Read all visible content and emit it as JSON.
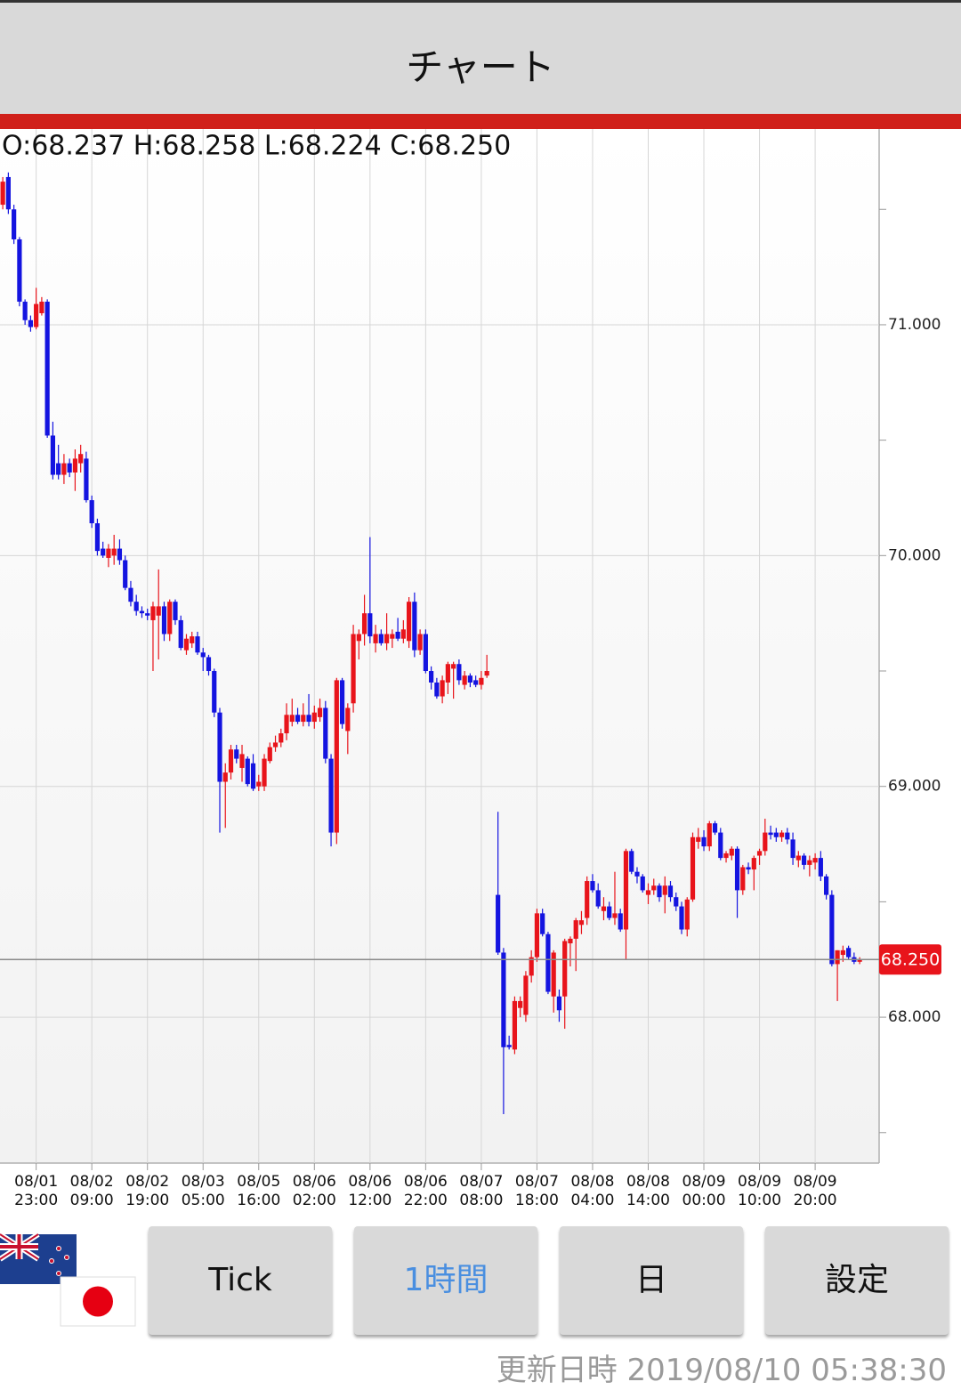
{
  "app": {
    "title": "チャート",
    "buttons": [
      "Tick",
      "1時間",
      "日",
      "設定"
    ],
    "selected_button": 1,
    "updated_label": "更新日時",
    "updated_at": "2019/08/10 05:38:30"
  },
  "chart_data": {
    "type": "candlestick",
    "info": "O:68.237 H:68.258 L:68.224 C:68.250",
    "up_color": "#e8141b",
    "down_color": "#1414e0",
    "grid": true,
    "xlim": [
      -0.5,
      157.5
    ],
    "xticks": [
      {
        "value": 6,
        "label": "08/01\n23:00"
      },
      {
        "value": 16,
        "label": "08/02\n09:00"
      },
      {
        "value": 26,
        "label": "08/02\n19:00"
      },
      {
        "value": 36,
        "label": "08/03\n05:00"
      },
      {
        "value": 46,
        "label": "08/05\n16:00"
      },
      {
        "value": 56,
        "label": "08/06\n02:00"
      },
      {
        "value": 66,
        "label": "08/06\n12:00"
      },
      {
        "value": 76,
        "label": "08/06\n22:00"
      },
      {
        "value": 86,
        "label": "08/07\n08:00"
      },
      {
        "value": 96,
        "label": "08/07\n18:00"
      },
      {
        "value": 106,
        "label": "08/08\n04:00"
      },
      {
        "value": 116,
        "label": "08/08\n14:00"
      },
      {
        "value": 126,
        "label": "08/09\n00:00"
      },
      {
        "value": 136,
        "label": "08/09\n10:00"
      },
      {
        "value": 146,
        "label": "08/09\n20:00"
      }
    ],
    "ylim": [
      67.368,
      71.848
    ],
    "yticks": [
      {
        "value": 68,
        "label": "68.000"
      },
      {
        "value": 69,
        "label": "69.000"
      },
      {
        "value": 70,
        "label": "70.000"
      },
      {
        "value": 71,
        "label": "71.000"
      }
    ],
    "minor_yticks": [
      67.5,
      68.5,
      69.5,
      70.5,
      71.5
    ],
    "last_price": {
      "value": 68.25,
      "label": "68.250"
    },
    "candles": [
      [
        71.52,
        71.64,
        71.5,
        71.62
      ],
      [
        71.64,
        71.66,
        71.48,
        71.5
      ],
      [
        71.5,
        71.52,
        71.35,
        71.37
      ],
      [
        71.37,
        71.38,
        71.08,
        71.1
      ],
      [
        71.1,
        71.11,
        71.0,
        71.02
      ],
      [
        71.02,
        71.04,
        70.97,
        70.99
      ],
      [
        70.99,
        71.16,
        70.98,
        71.09
      ],
      [
        71.05,
        71.12,
        71.04,
        71.1
      ],
      [
        71.1,
        71.11,
        70.51,
        70.52
      ],
      [
        70.52,
        70.58,
        70.33,
        70.35
      ],
      [
        70.4,
        70.48,
        70.33,
        70.35
      ],
      [
        70.35,
        70.44,
        70.31,
        70.4
      ],
      [
        70.4,
        70.42,
        70.34,
        70.36
      ],
      [
        70.36,
        70.46,
        70.28,
        70.42
      ],
      [
        70.4,
        70.48,
        70.36,
        70.44
      ],
      [
        70.42,
        70.45,
        70.23,
        70.24
      ],
      [
        70.24,
        70.26,
        70.12,
        70.14
      ],
      [
        70.14,
        70.16,
        70.0,
        70.02
      ],
      [
        70.03,
        70.06,
        69.99,
        70.0
      ],
      [
        69.99,
        70.05,
        69.95,
        70.03
      ],
      [
        70.0,
        70.09,
        69.96,
        70.03
      ],
      [
        70.03,
        70.07,
        69.96,
        69.98
      ],
      [
        69.98,
        70.0,
        69.85,
        69.86
      ],
      [
        69.86,
        69.89,
        69.78,
        69.8
      ],
      [
        69.8,
        69.83,
        69.74,
        69.76
      ],
      [
        69.76,
        69.78,
        69.73,
        69.75
      ],
      [
        69.75,
        69.77,
        69.72,
        69.74
      ],
      [
        69.72,
        69.8,
        69.5,
        69.78
      ],
      [
        69.74,
        69.94,
        69.55,
        69.78
      ],
      [
        69.78,
        69.8,
        69.63,
        69.66
      ],
      [
        69.66,
        69.81,
        69.63,
        69.8
      ],
      [
        69.8,
        69.81,
        69.7,
        69.72
      ],
      [
        69.72,
        69.74,
        69.59,
        69.6
      ],
      [
        69.59,
        69.66,
        69.57,
        69.64
      ],
      [
        69.62,
        69.67,
        69.6,
        69.65
      ],
      [
        69.65,
        69.67,
        69.57,
        69.58
      ],
      [
        69.58,
        69.6,
        69.5,
        69.56
      ],
      [
        69.56,
        69.57,
        69.48,
        69.5
      ],
      [
        69.5,
        69.51,
        69.3,
        69.32
      ],
      [
        69.32,
        69.34,
        68.8,
        69.02
      ],
      [
        69.02,
        69.1,
        68.82,
        69.06
      ],
      [
        69.06,
        69.18,
        69.03,
        69.16
      ],
      [
        69.16,
        69.18,
        69.1,
        69.12
      ],
      [
        69.08,
        69.18,
        69.02,
        69.14
      ],
      [
        69.12,
        69.13,
        69.0,
        69.01
      ],
      [
        69.1,
        69.14,
        68.98,
        68.99
      ],
      [
        69.0,
        69.05,
        68.98,
        69.02
      ],
      [
        69.0,
        69.14,
        68.98,
        69.12
      ],
      [
        69.11,
        69.19,
        69.1,
        69.17
      ],
      [
        69.17,
        69.22,
        69.15,
        69.19
      ],
      [
        69.19,
        69.25,
        69.17,
        69.23
      ],
      [
        69.23,
        69.36,
        69.2,
        69.31
      ],
      [
        69.28,
        69.38,
        69.26,
        69.31
      ],
      [
        69.31,
        69.34,
        69.27,
        69.28
      ],
      [
        69.28,
        69.36,
        69.26,
        69.31
      ],
      [
        69.31,
        69.4,
        69.26,
        69.28
      ],
      [
        69.28,
        69.35,
        69.25,
        69.32
      ],
      [
        69.3,
        69.38,
        69.28,
        69.34
      ],
      [
        69.34,
        69.37,
        69.1,
        69.12
      ],
      [
        69.12,
        69.14,
        68.74,
        68.8
      ],
      [
        68.8,
        69.47,
        68.75,
        69.46
      ],
      [
        69.46,
        69.47,
        69.25,
        69.27
      ],
      [
        69.24,
        69.36,
        69.14,
        69.34
      ],
      [
        69.36,
        69.7,
        69.32,
        69.66
      ],
      [
        69.63,
        69.68,
        69.55,
        69.66
      ],
      [
        69.66,
        69.83,
        69.61,
        69.75
      ],
      [
        69.75,
        70.08,
        69.62,
        69.65
      ],
      [
        69.62,
        69.7,
        69.58,
        69.66
      ],
      [
        69.66,
        69.68,
        69.61,
        69.62
      ],
      [
        69.62,
        69.75,
        69.59,
        69.66
      ],
      [
        69.64,
        69.68,
        69.6,
        69.66
      ],
      [
        69.67,
        69.73,
        69.63,
        69.64
      ],
      [
        69.64,
        69.72,
        69.62,
        69.68
      ],
      [
        69.63,
        69.82,
        69.6,
        69.8
      ],
      [
        69.8,
        69.84,
        69.56,
        69.59
      ],
      [
        69.59,
        69.68,
        69.57,
        69.66
      ],
      [
        69.66,
        69.68,
        69.49,
        69.5
      ],
      [
        69.5,
        69.52,
        69.42,
        69.45
      ],
      [
        69.45,
        69.47,
        69.38,
        69.39
      ],
      [
        69.39,
        69.48,
        69.36,
        69.46
      ],
      [
        69.45,
        69.54,
        69.4,
        69.53
      ],
      [
        69.51,
        69.54,
        69.38,
        69.53
      ],
      [
        69.53,
        69.55,
        69.44,
        69.46
      ],
      [
        69.44,
        69.5,
        69.42,
        69.48
      ],
      [
        69.48,
        69.49,
        69.43,
        69.45
      ],
      [
        69.46,
        69.48,
        69.43,
        69.44
      ],
      [
        69.44,
        69.5,
        69.42,
        69.47
      ],
      [
        69.48,
        69.57,
        69.47,
        69.5
      ],
      null,
      [
        68.53,
        68.89,
        68.27,
        68.28
      ],
      [
        68.28,
        68.3,
        67.58,
        67.87
      ],
      [
        67.88,
        67.92,
        67.86,
        67.87
      ],
      [
        67.86,
        68.09,
        67.84,
        68.07
      ],
      [
        68.04,
        68.09,
        68.0,
        68.07
      ],
      [
        68.01,
        68.2,
        67.98,
        68.18
      ],
      [
        68.18,
        68.29,
        68.15,
        68.26
      ],
      [
        68.26,
        68.47,
        68.24,
        68.45
      ],
      [
        68.45,
        68.47,
        68.35,
        68.36
      ],
      [
        68.36,
        68.37,
        68.1,
        68.11
      ],
      [
        68.09,
        68.29,
        68.02,
        68.28
      ],
      [
        68.09,
        68.12,
        67.98,
        68.03
      ],
      [
        68.09,
        68.34,
        67.95,
        68.33
      ],
      [
        68.32,
        68.35,
        68.22,
        68.34
      ],
      [
        68.34,
        68.43,
        68.2,
        68.42
      ],
      [
        68.4,
        68.46,
        68.36,
        68.42
      ],
      [
        68.43,
        68.61,
        68.4,
        68.59
      ],
      [
        68.59,
        68.62,
        68.54,
        68.55
      ],
      [
        68.55,
        68.58,
        68.47,
        68.48
      ],
      [
        68.46,
        68.52,
        68.42,
        68.48
      ],
      [
        68.48,
        68.5,
        68.42,
        68.43
      ],
      [
        68.43,
        68.63,
        68.4,
        68.45
      ],
      [
        68.45,
        68.47,
        68.37,
        68.38
      ],
      [
        68.38,
        68.73,
        68.25,
        68.72
      ],
      [
        68.72,
        68.73,
        68.62,
        68.63
      ],
      [
        68.63,
        68.65,
        68.58,
        68.61
      ],
      [
        68.61,
        68.62,
        68.54,
        68.55
      ],
      [
        68.53,
        68.58,
        68.49,
        68.55
      ],
      [
        68.55,
        68.6,
        68.53,
        68.57
      ],
      [
        68.57,
        68.58,
        68.5,
        68.52
      ],
      [
        68.53,
        68.61,
        68.45,
        68.57
      ],
      [
        68.57,
        68.59,
        68.5,
        68.52
      ],
      [
        68.52,
        68.54,
        68.46,
        68.48
      ],
      [
        68.48,
        68.5,
        68.36,
        68.38
      ],
      [
        68.38,
        68.52,
        68.35,
        68.51
      ],
      [
        68.51,
        68.8,
        68.5,
        68.78
      ],
      [
        68.76,
        68.82,
        68.73,
        68.78
      ],
      [
        68.78,
        68.81,
        68.72,
        68.74
      ],
      [
        68.74,
        68.85,
        68.72,
        68.84
      ],
      [
        68.84,
        68.85,
        68.79,
        68.8
      ],
      [
        68.8,
        68.82,
        68.68,
        68.69
      ],
      [
        68.69,
        68.72,
        68.67,
        68.71
      ],
      [
        68.7,
        68.74,
        68.68,
        68.73
      ],
      [
        68.73,
        68.74,
        68.43,
        68.55
      ],
      [
        68.55,
        68.66,
        68.53,
        68.65
      ],
      [
        68.65,
        68.67,
        68.62,
        68.64
      ],
      [
        68.64,
        68.7,
        68.55,
        68.69
      ],
      [
        68.7,
        68.73,
        68.66,
        68.72
      ],
      [
        68.72,
        68.86,
        68.7,
        68.8
      ],
      [
        68.8,
        68.83,
        68.77,
        68.79
      ],
      [
        68.8,
        68.82,
        68.76,
        68.78
      ],
      [
        68.78,
        68.81,
        68.76,
        68.8
      ],
      [
        68.8,
        68.82,
        68.75,
        68.77
      ],
      [
        68.77,
        68.8,
        68.66,
        68.69
      ],
      [
        68.68,
        68.72,
        68.65,
        68.7
      ],
      [
        68.7,
        68.71,
        68.64,
        68.66
      ],
      [
        68.66,
        68.7,
        68.61,
        68.68
      ],
      [
        68.67,
        68.71,
        68.64,
        68.69
      ],
      [
        68.69,
        68.72,
        68.59,
        68.61
      ],
      [
        68.61,
        68.62,
        68.51,
        68.53
      ],
      [
        68.53,
        68.55,
        68.22,
        68.23
      ],
      [
        68.23,
        68.29,
        68.07,
        68.29
      ],
      [
        68.27,
        68.31,
        68.24,
        68.29
      ],
      [
        68.3,
        68.31,
        68.25,
        68.26
      ],
      [
        68.26,
        68.28,
        68.23,
        68.24
      ],
      [
        68.24,
        68.26,
        68.23,
        68.25
      ]
    ]
  }
}
